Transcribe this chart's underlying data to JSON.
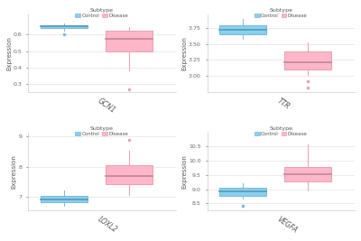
{
  "plots": [
    {
      "gene": "GCN1",
      "control": {
        "whisker_low": 0.622,
        "q1": 0.64,
        "median": 0.648,
        "q3": 0.658,
        "whisker_high": 0.668,
        "outliers": [
          0.6
        ]
      },
      "disease": {
        "whisker_low": 0.38,
        "q1": 0.5,
        "median": 0.575,
        "q3": 0.625,
        "whisker_high": 0.645,
        "outliers": [
          0.27
        ]
      },
      "ylim": [
        0.25,
        0.72
      ],
      "yticks": [
        0.3,
        0.4,
        0.5,
        0.6
      ]
    },
    {
      "gene": "TTR",
      "control": {
        "whisker_low": 3.58,
        "q1": 3.65,
        "median": 3.71,
        "q3": 3.78,
        "whisker_high": 3.88,
        "outliers": []
      },
      "disease": {
        "whisker_low": 3.02,
        "q1": 3.1,
        "median": 3.22,
        "q3": 3.38,
        "whisker_high": 3.52,
        "outliers": [
          2.92,
          2.83
        ]
      },
      "ylim": [
        2.75,
        3.95
      ],
      "yticks": [
        3.0,
        3.25,
        3.5,
        3.75
      ]
    },
    {
      "gene": "LOXL2",
      "control": {
        "whisker_low": 6.72,
        "q1": 6.83,
        "median": 6.92,
        "q3": 7.05,
        "whisker_high": 7.22,
        "outliers": []
      },
      "disease": {
        "whisker_low": 7.08,
        "q1": 7.42,
        "median": 7.68,
        "q3": 8.05,
        "whisker_high": 8.52,
        "outliers": [
          8.88
        ]
      },
      "ylim": [
        6.55,
        9.1
      ],
      "yticks": [
        7,
        8,
        9
      ]
    },
    {
      "gene": "VEGFA",
      "control": {
        "whisker_low": 8.68,
        "q1": 8.78,
        "median": 8.92,
        "q3": 9.05,
        "whisker_high": 9.22,
        "outliers": [
          8.42
        ]
      },
      "disease": {
        "whisker_low": 8.95,
        "q1": 9.28,
        "median": 9.52,
        "q3": 9.78,
        "whisker_high": 10.55,
        "outliers": []
      },
      "ylim": [
        8.25,
        10.95
      ],
      "yticks": [
        8.5,
        9.0,
        9.5,
        10.0,
        10.5
      ]
    }
  ],
  "control_color": "#89CFF0",
  "disease_color": "#FFB6C8",
  "control_edge": "#7AB8D8",
  "disease_edge": "#E8A0B0",
  "ctrl_median_color": "#5599BB",
  "dis_median_color": "#BB8899",
  "background_color": "#FFFFFF",
  "panel_background": "#FFFFFF",
  "grid_color": "#E8E8E8",
  "ylabel": "Expression",
  "legend_title": "Subtype"
}
